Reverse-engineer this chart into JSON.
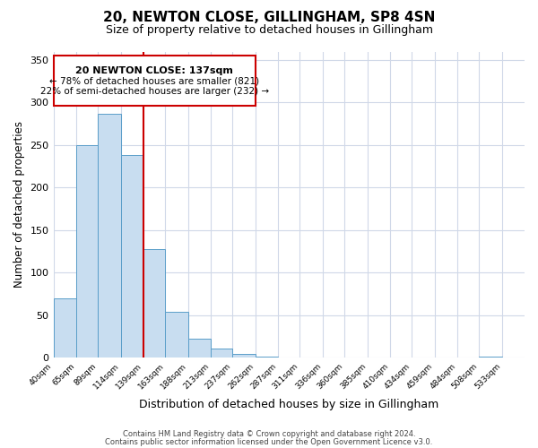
{
  "title": "20, NEWTON CLOSE, GILLINGHAM, SP8 4SN",
  "subtitle": "Size of property relative to detached houses in Gillingham",
  "xlabel": "Distribution of detached houses by size in Gillingham",
  "ylabel": "Number of detached properties",
  "bin_edges": [
    40,
    65,
    89,
    114,
    139,
    163,
    188,
    213,
    237,
    262,
    287,
    311,
    336,
    360,
    385,
    410,
    434,
    459,
    484,
    508,
    533
  ],
  "bar_heights": [
    70,
    250,
    287,
    238,
    128,
    54,
    22,
    11,
    4,
    1,
    0,
    0,
    0,
    0,
    0,
    0,
    0,
    0,
    0,
    1
  ],
  "bar_color": "#c8ddf0",
  "bar_edge_color": "#5a9ec9",
  "vline_x": 139,
  "vline_color": "#cc0000",
  "annotation_title": "20 NEWTON CLOSE: 137sqm",
  "annotation_line1": "← 78% of detached houses are smaller (821)",
  "annotation_line2": "22% of semi-detached houses are larger (232) →",
  "annotation_box_color": "#ffffff",
  "annotation_box_edge": "#cc0000",
  "ylim": [
    0,
    360
  ],
  "yticks": [
    0,
    50,
    100,
    150,
    200,
    250,
    300,
    350
  ],
  "footer1": "Contains HM Land Registry data © Crown copyright and database right 2024.",
  "footer2": "Contains public sector information licensed under the Open Government Licence v3.0.",
  "background_color": "#ffffff",
  "grid_color": "#d0d8e8",
  "title_fontsize": 11,
  "subtitle_fontsize": 9
}
